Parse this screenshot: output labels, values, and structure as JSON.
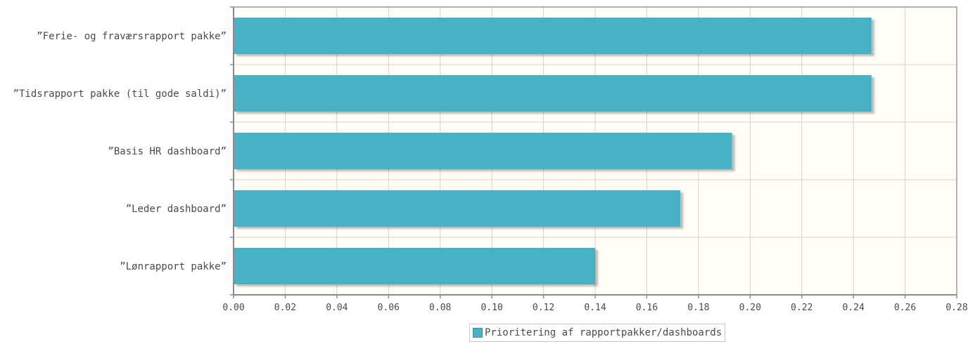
{
  "chart_data": {
    "type": "bar",
    "orientation": "horizontal",
    "categories": [
      "”Ferie- og fraværsrapport pakke”",
      "”Tidsrapport pakke (til gode saldi)”",
      "”Basis HR dashboard”",
      "”Leder dashboard”",
      "”Lønrapport pakke”"
    ],
    "series": [
      {
        "name": "Prioritering af rapportpakker/dashboards",
        "values": [
          0.247,
          0.247,
          0.193,
          0.173,
          0.14
        ],
        "color": "#4ab1c4"
      }
    ],
    "xlim": [
      0,
      0.28
    ],
    "xticks": [
      "0.00",
      "0.02",
      "0.04",
      "0.06",
      "0.08",
      "0.10",
      "0.12",
      "0.14",
      "0.16",
      "0.18",
      "0.20",
      "0.22",
      "0.24",
      "0.26",
      "0.28"
    ],
    "grid": true,
    "legend_position": "bottom-center",
    "plot_background": "#fffdf6"
  },
  "legend": {
    "label": "Prioritering af rapportpakker/dashboards"
  }
}
